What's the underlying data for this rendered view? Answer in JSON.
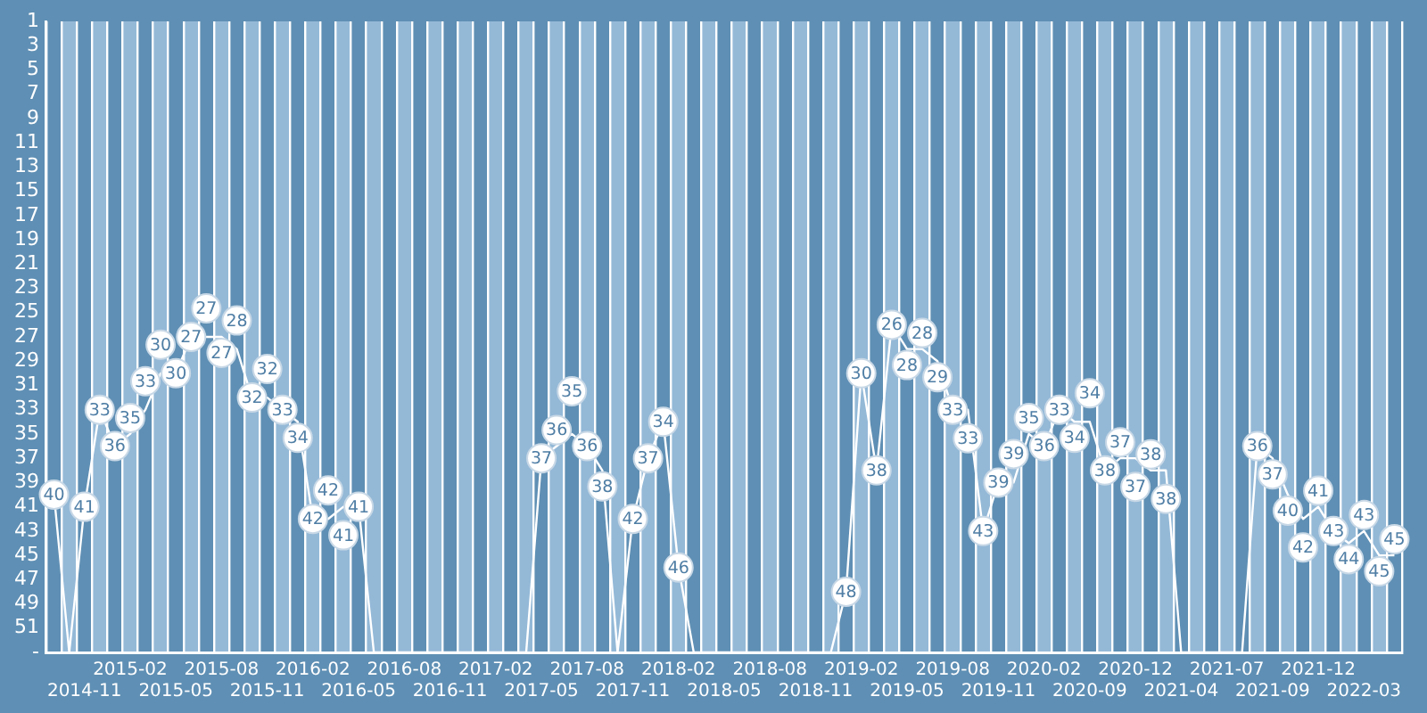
{
  "chart_data": {
    "type": "line",
    "categories": [
      null,
      null,
      "2014-11",
      null,
      null,
      "2015-02",
      null,
      null,
      "2015-05",
      null,
      null,
      "2015-08",
      null,
      null,
      "2015-11",
      null,
      null,
      "2016-02",
      null,
      null,
      "2016-05",
      null,
      null,
      "2016-08",
      null,
      null,
      "2016-11",
      null,
      null,
      "2017-02",
      null,
      null,
      "2017-05",
      null,
      null,
      "2017-08",
      null,
      null,
      "2017-11",
      null,
      null,
      "2018-02",
      null,
      null,
      "2018-05",
      null,
      null,
      "2018-08",
      null,
      null,
      "2018-11",
      null,
      null,
      "2019-02",
      null,
      null,
      "2019-05",
      null,
      null,
      "2019-08",
      null,
      null,
      "2019-11",
      null,
      null,
      "2020-02",
      null,
      null,
      "2020-09",
      null,
      null,
      "2020-12",
      null,
      null,
      "2021-04",
      null,
      null,
      "2021-07",
      null,
      null,
      "2021-09",
      null,
      null,
      "2021-12",
      null,
      null,
      "2022-03",
      null,
      null
    ],
    "series": [
      {
        "color": "#ffffff",
        "values": [
          40,
          53,
          41,
          33,
          36,
          35,
          33,
          30,
          30,
          27,
          27,
          27,
          28,
          32,
          32,
          33,
          34,
          42,
          42,
          41,
          41,
          53,
          53,
          53,
          53,
          53,
          53,
          53,
          53,
          53,
          53,
          53,
          37,
          36,
          35,
          36,
          38,
          53,
          42,
          37,
          34,
          46,
          53,
          53,
          53,
          53,
          53,
          53,
          53,
          53,
          53,
          53,
          48,
          30,
          38,
          26,
          28,
          28,
          29,
          33,
          33,
          43,
          39,
          39,
          35,
          36,
          33,
          34,
          34,
          38,
          37,
          37,
          38,
          38,
          53,
          53,
          53,
          53,
          53,
          36,
          37,
          40,
          42,
          41,
          43,
          44,
          43,
          45,
          45
        ],
        "value_labels": [
          "40",
          null,
          "41",
          "33",
          "36",
          "35",
          "33",
          "30",
          "30",
          "27",
          "27",
          "27",
          "28",
          "32",
          "32",
          "33",
          "34",
          "42",
          "42",
          "41",
          "41",
          null,
          null,
          null,
          null,
          null,
          null,
          null,
          null,
          null,
          null,
          null,
          "37",
          "36",
          "35",
          "36",
          "38",
          null,
          "42",
          "37",
          "34",
          "46",
          null,
          null,
          null,
          null,
          null,
          null,
          null,
          null,
          null,
          null,
          "48",
          "30",
          "38",
          "26",
          "28",
          "28",
          "29",
          "33",
          "33",
          "43",
          "39",
          "39",
          "35",
          "36",
          "33",
          "34",
          "34",
          "38",
          "37",
          "37",
          "38",
          "38",
          null,
          null,
          null,
          null,
          null,
          "36",
          "37",
          "40",
          "42",
          "41",
          "43",
          "44",
          "43",
          "45",
          "45"
        ]
      }
    ],
    "ylim": [
      53,
      1
    ],
    "yticks": [
      1,
      3,
      5,
      7,
      9,
      11,
      13,
      15,
      17,
      19,
      21,
      23,
      25,
      27,
      29,
      31,
      33,
      35,
      37,
      39,
      41,
      43,
      45,
      47,
      49,
      51,
      {
        "value": 53,
        "label": "-"
      }
    ],
    "grid": "x",
    "legend": false,
    "line_style": "solid"
  }
}
